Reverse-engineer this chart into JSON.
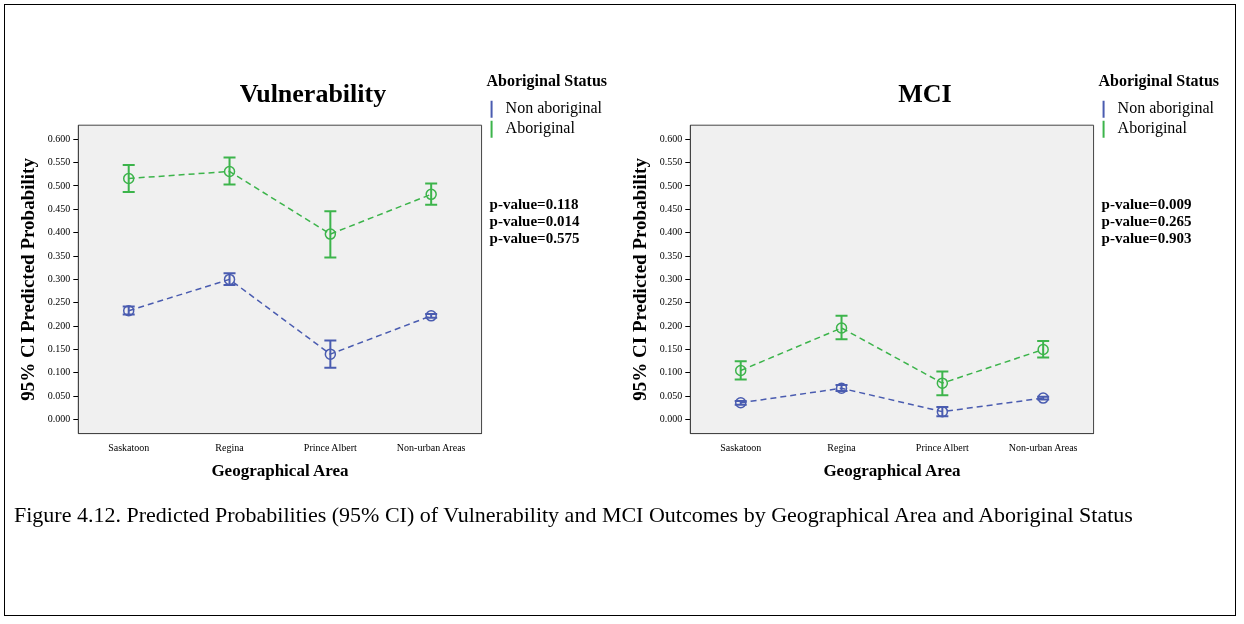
{
  "chart_data": [
    {
      "type": "line",
      "title": "Vulnerability",
      "xlabel": "Geographical Area",
      "ylabel": "95% CI Predicted Probability",
      "legend_title": "Aboriginal Status",
      "categories": [
        "Saskatoon",
        "Regina",
        "Prince Albert",
        "Non-urban Areas"
      ],
      "ylim": [
        -0.03,
        0.63
      ],
      "yticks": [
        {
          "value": 0,
          "label": "0.000"
        },
        {
          "value": 0.05,
          "label": "0.050"
        },
        {
          "value": 0.1,
          "label": "0.100"
        },
        {
          "value": 0.15,
          "label": "0.150"
        },
        {
          "value": 0.2,
          "label": "0.200"
        },
        {
          "value": 0.25,
          "label": "0.250"
        },
        {
          "value": 0.3,
          "label": "0.300"
        },
        {
          "value": 0.35,
          "label": "0.350"
        },
        {
          "value": 0.4,
          "label": "0.400"
        },
        {
          "value": 0.45,
          "label": "0.450"
        },
        {
          "value": 0.5,
          "label": "0.500"
        },
        {
          "value": 0.55,
          "label": "0.550"
        },
        {
          "value": 0.6,
          "label": "0.600"
        }
      ],
      "grid": false,
      "legend": "right",
      "marker": "circle",
      "line_style": "dashed",
      "series": [
        {
          "name": "Non aboriginal",
          "color": "#4a5cb0",
          "values": [
            0.233,
            0.3,
            0.14,
            0.222
          ],
          "errors": [
            [
              0.225,
              0.242
            ],
            [
              0.288,
              0.313
            ],
            [
              0.111,
              0.169
            ],
            [
              0.218,
              0.226
            ]
          ]
        },
        {
          "name": "Aboriginal",
          "color": "#3cb44b",
          "values": [
            0.516,
            0.531,
            0.397,
            0.482
          ],
          "errors": [
            [
              0.487,
              0.545
            ],
            [
              0.503,
              0.561
            ],
            [
              0.347,
              0.446
            ],
            [
              0.46,
              0.505
            ]
          ]
        }
      ],
      "annotations": [
        "p-value=0.118",
        "p-value=0.014",
        "p-value=0.575"
      ]
    },
    {
      "type": "line",
      "title": "MCI",
      "xlabel": "Geographical Area",
      "ylabel": "95% CI Predicted Probability",
      "legend_title": "Aboriginal Status",
      "categories": [
        "Saskatoon",
        "Regina",
        "Prince Albert",
        "Non-urban Areas"
      ],
      "ylim": [
        -0.03,
        0.63
      ],
      "yticks": [
        {
          "value": 0,
          "label": "0.000"
        },
        {
          "value": 0.05,
          "label": "0.050"
        },
        {
          "value": 0.1,
          "label": "0.100"
        },
        {
          "value": 0.15,
          "label": "0.150"
        },
        {
          "value": 0.2,
          "label": "0.200"
        },
        {
          "value": 0.25,
          "label": "0.250"
        },
        {
          "value": 0.3,
          "label": "0.300"
        },
        {
          "value": 0.35,
          "label": "0.350"
        },
        {
          "value": 0.4,
          "label": "0.400"
        },
        {
          "value": 0.45,
          "label": "0.450"
        },
        {
          "value": 0.5,
          "label": "0.500"
        },
        {
          "value": 0.55,
          "label": "0.550"
        },
        {
          "value": 0.6,
          "label": "0.600"
        }
      ],
      "grid": false,
      "legend": "right",
      "marker": "circle",
      "line_style": "dashed",
      "series": [
        {
          "name": "Non aboriginal",
          "color": "#4a5cb0",
          "values": [
            0.036,
            0.067,
            0.017,
            0.046
          ],
          "errors": [
            [
              0.032,
              0.04
            ],
            [
              0.061,
              0.074
            ],
            [
              0.007,
              0.027
            ],
            [
              0.043,
              0.049
            ]
          ]
        },
        {
          "name": "Aboriginal",
          "color": "#3cb44b",
          "values": [
            0.105,
            0.196,
            0.078,
            0.15
          ],
          "errors": [
            [
              0.086,
              0.125
            ],
            [
              0.172,
              0.222
            ],
            [
              0.052,
              0.103
            ],
            [
              0.133,
              0.168
            ]
          ]
        }
      ],
      "annotations": [
        "p-value=0.009",
        "p-value=0.265",
        "p-value=0.903"
      ]
    },
    {
      "type": "other",
      "annotations": [
        "Figure 4.12. Predicted Probabilities (95% CI) of Vulnerability and MCI Outcomes by Geographical Area and Aboriginal Status"
      ]
    }
  ]
}
